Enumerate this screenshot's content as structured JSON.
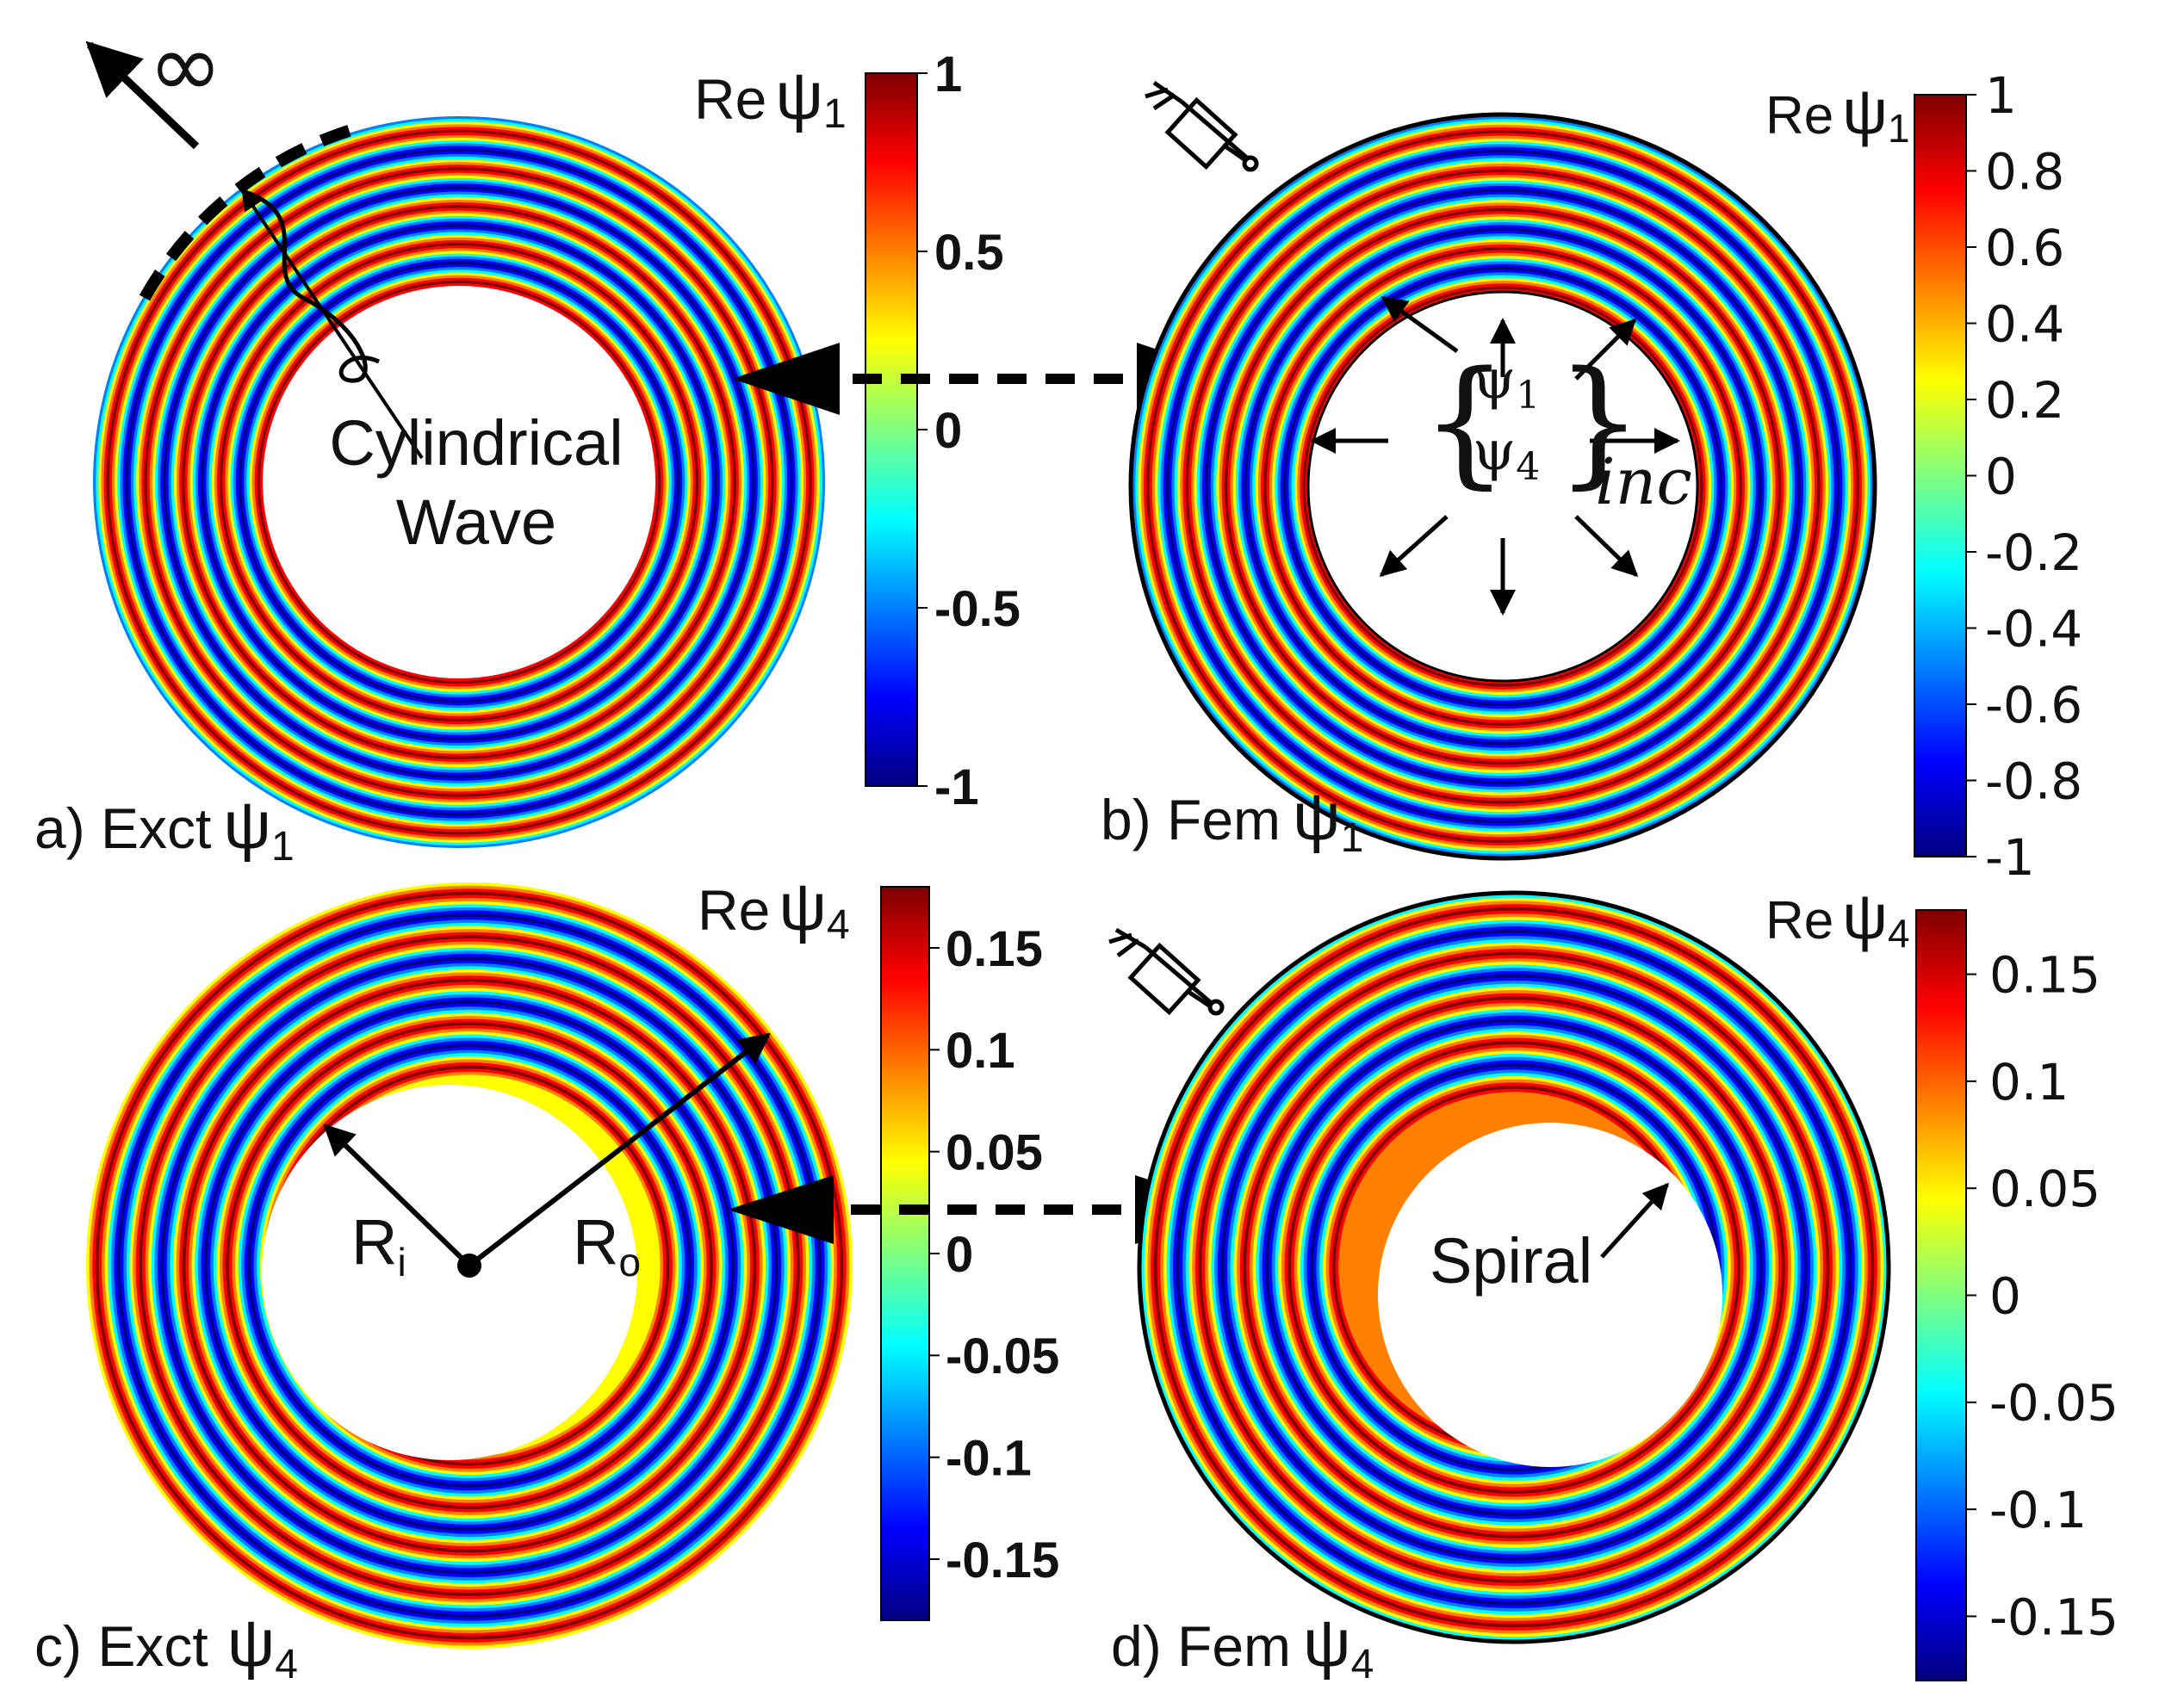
{
  "colors": {
    "jet": [
      "#00007f",
      "#0000ff",
      "#007fff",
      "#00ffff",
      "#7fff7f",
      "#ffff00",
      "#ff7f00",
      "#ff0000",
      "#7f0000"
    ]
  },
  "panels": [
    {
      "key": "a",
      "caption_prefix": "a) Exct",
      "symbol": "ψ",
      "sub": "1",
      "bar_title": "Re",
      "bar_sym": "ψ",
      "bar_sub": "1"
    },
    {
      "key": "b",
      "caption_prefix": "b) Fem",
      "symbol": "ψ",
      "sub": "1",
      "bar_title": "Re",
      "bar_sym": "ψ",
      "bar_sub": "1"
    },
    {
      "key": "c",
      "caption_prefix": "c) Exct",
      "symbol": "ψ",
      "sub": "4",
      "bar_title": "Re",
      "bar_sym": "ψ",
      "bar_sub": "4"
    },
    {
      "key": "d",
      "caption_prefix": "d) Fem",
      "symbol": "ψ",
      "sub": "4",
      "bar_title": "Re",
      "bar_sym": "ψ",
      "bar_sub": "4"
    }
  ],
  "colorbars": {
    "a": {
      "min": -1,
      "max": 1,
      "ticks": [
        "1",
        "0.5",
        "0",
        "-0.5",
        "-1"
      ],
      "tick_values": [
        1,
        0.5,
        0,
        -0.5,
        -1
      ]
    },
    "b": {
      "min": -1,
      "max": 1,
      "ticks": [
        "1",
        "0.8",
        "0.6",
        "0.4",
        "0.2",
        "0",
        "-0.2",
        "-0.4",
        "-0.6",
        "-0.8",
        "-1"
      ],
      "tick_values": [
        1,
        0.8,
        0.6,
        0.4,
        0.2,
        0,
        -0.2,
        -0.4,
        -0.6,
        -0.8,
        -1
      ]
    },
    "c": {
      "min": -0.18,
      "max": 0.18,
      "ticks": [
        "0.15",
        "0.1",
        "0.05",
        "0",
        "-0.05",
        "-0.1",
        "-0.15"
      ],
      "tick_values": [
        0.15,
        0.1,
        0.05,
        0,
        -0.05,
        -0.1,
        -0.15
      ]
    },
    "d": {
      "min": -0.18,
      "max": 0.18,
      "ticks": [
        "0.15",
        "0.1",
        "0.05",
        "0",
        "-0.05",
        "-0.1",
        "-0.15"
      ],
      "tick_values": [
        0.15,
        0.1,
        0.05,
        0,
        -0.05,
        -0.1,
        -0.15
      ]
    }
  },
  "annotations": {
    "infinity": "∞",
    "cylindrical": "Cylindrical",
    "wave": "Wave",
    "psi1": "ψ",
    "psi1_sub": "1",
    "psi4": "ψ",
    "psi4_sub": "4",
    "inc": "inc",
    "R": "R",
    "Ri_sub": "i",
    "Ro_sub": "o",
    "spiral": "Spiral"
  }
}
